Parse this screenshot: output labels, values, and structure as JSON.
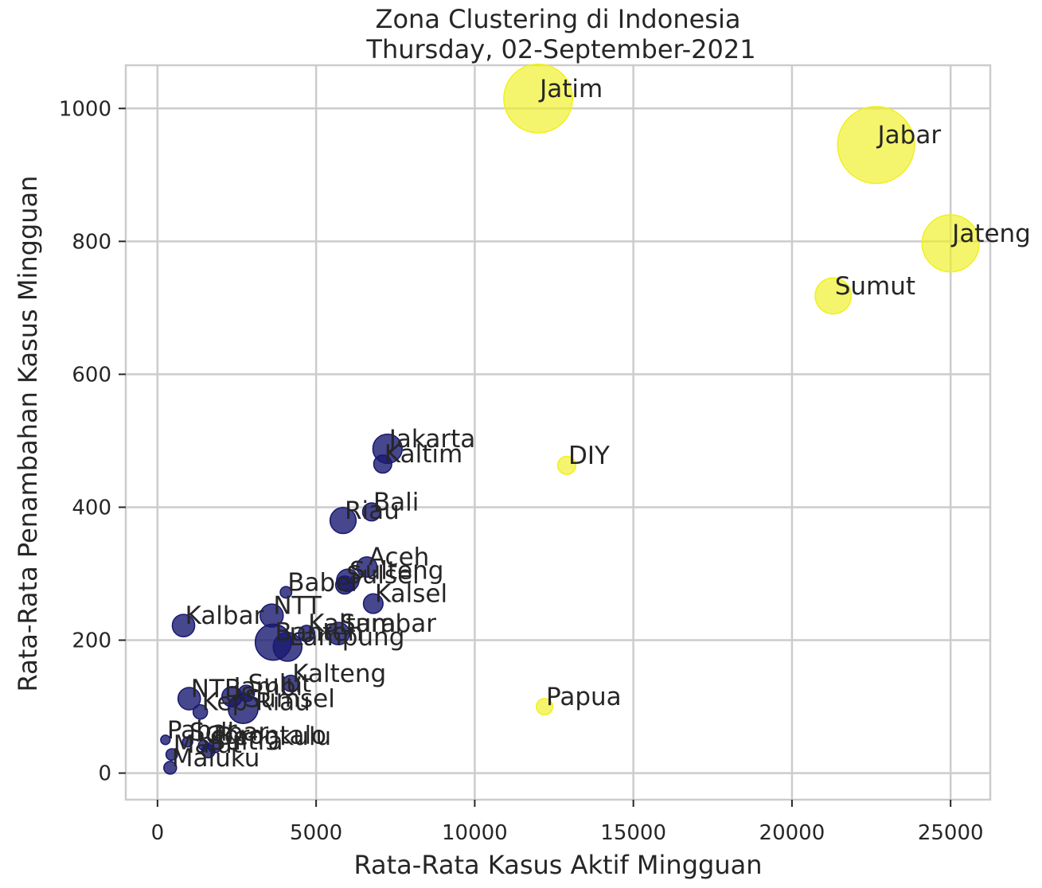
{
  "chart_data": {
    "type": "scatter",
    "title": "Zona Clustering di Indonesia",
    "subtitle": "Thursday, 02-September-2021",
    "xlabel": "Rata-Rata Kasus Aktif Mingguan",
    "ylabel": "Rata-Rata Penambahan Kasus Mingguan",
    "xlim": [
      -1000,
      26250
    ],
    "ylim": [
      -40,
      1065
    ],
    "xticks": [
      0,
      5000,
      10000,
      15000,
      20000,
      25000
    ],
    "yticks": [
      0,
      200,
      400,
      600,
      800,
      1000
    ],
    "grid": true,
    "colors": {
      "cluster_0": "#191970",
      "cluster_1": "#f0f01e"
    },
    "points": [
      {
        "label": "Jatim",
        "x": 12000,
        "y": 1015,
        "size": 1600,
        "cluster": 1
      },
      {
        "label": "Jabar",
        "x": 22650,
        "y": 945,
        "size": 2000,
        "cluster": 1
      },
      {
        "label": "Jateng",
        "x": 25000,
        "y": 797,
        "size": 1100,
        "cluster": 1
      },
      {
        "label": "Sumut",
        "x": 21300,
        "y": 718,
        "size": 440,
        "cluster": 1
      },
      {
        "label": "DIY",
        "x": 12900,
        "y": 463,
        "size": 110,
        "cluster": 1
      },
      {
        "label": "Papua",
        "x": 12200,
        "y": 100,
        "size": 90,
        "cluster": 1
      },
      {
        "label": "Jakarta",
        "x": 7250,
        "y": 488,
        "size": 290,
        "cluster": 0
      },
      {
        "label": "Kaltim",
        "x": 7100,
        "y": 465,
        "size": 110,
        "cluster": 0
      },
      {
        "label": "Bali",
        "x": 6750,
        "y": 393,
        "size": 110,
        "cluster": 0
      },
      {
        "label": "Riau",
        "x": 5850,
        "y": 380,
        "size": 230,
        "cluster": 0
      },
      {
        "label": "Aceh",
        "x": 6600,
        "y": 310,
        "size": 140,
        "cluster": 0
      },
      {
        "label": "Sulteng",
        "x": 6000,
        "y": 290,
        "size": 170,
        "cluster": 0
      },
      {
        "label": "Sulsel",
        "x": 5900,
        "y": 283,
        "size": 110,
        "cluster": 0
      },
      {
        "label": "Babel",
        "x": 4050,
        "y": 272,
        "size": 45,
        "cluster": 0
      },
      {
        "label": "Kalsel",
        "x": 6800,
        "y": 255,
        "size": 130,
        "cluster": 0
      },
      {
        "label": "NTT",
        "x": 3600,
        "y": 237,
        "size": 180,
        "cluster": 0
      },
      {
        "label": "Kalbar",
        "x": 820,
        "y": 222,
        "size": 170,
        "cluster": 0
      },
      {
        "label": "Kaltara",
        "x": 4700,
        "y": 210,
        "size": 90,
        "cluster": 0
      },
      {
        "label": "Sumbar",
        "x": 5700,
        "y": 210,
        "size": 170,
        "cluster": 0
      },
      {
        "label": "Banten",
        "x": 3650,
        "y": 197,
        "size": 440,
        "cluster": 0
      },
      {
        "label": "Lampung",
        "x": 4100,
        "y": 190,
        "size": 280,
        "cluster": 0
      },
      {
        "label": "Kalteng",
        "x": 4200,
        "y": 135,
        "size": 90,
        "cluster": 0
      },
      {
        "label": "Sulut",
        "x": 2800,
        "y": 120,
        "size": 90,
        "cluster": 0
      },
      {
        "label": "NTB",
        "x": 1000,
        "y": 112,
        "size": 170,
        "cluster": 0
      },
      {
        "label": "Jambi",
        "x": 2350,
        "y": 115,
        "size": 140,
        "cluster": 0
      },
      {
        "label": "Sumsel",
        "x": 2700,
        "y": 97,
        "size": 300,
        "cluster": 0
      },
      {
        "label": "Kep Riau",
        "x": 1350,
        "y": 92,
        "size": 70,
        "cluster": 0
      },
      {
        "label": "Pabar",
        "x": 250,
        "y": 50,
        "size": 30,
        "cluster": 0
      },
      {
        "label": "Sulbar",
        "x": 950,
        "y": 47,
        "size": 35,
        "cluster": 0
      },
      {
        "label": "Gorontalo",
        "x": 1450,
        "y": 42,
        "size": 35,
        "cluster": 0
      },
      {
        "label": "Bengkulu",
        "x": 1800,
        "y": 40,
        "size": 55,
        "cluster": 0
      },
      {
        "label": "Sultra",
        "x": 1600,
        "y": 33,
        "size": 60,
        "cluster": 0
      },
      {
        "label": "Malut",
        "x": 450,
        "y": 28,
        "size": 45,
        "cluster": 0
      },
      {
        "label": "Maluku",
        "x": 400,
        "y": 8,
        "size": 55,
        "cluster": 0
      }
    ]
  }
}
